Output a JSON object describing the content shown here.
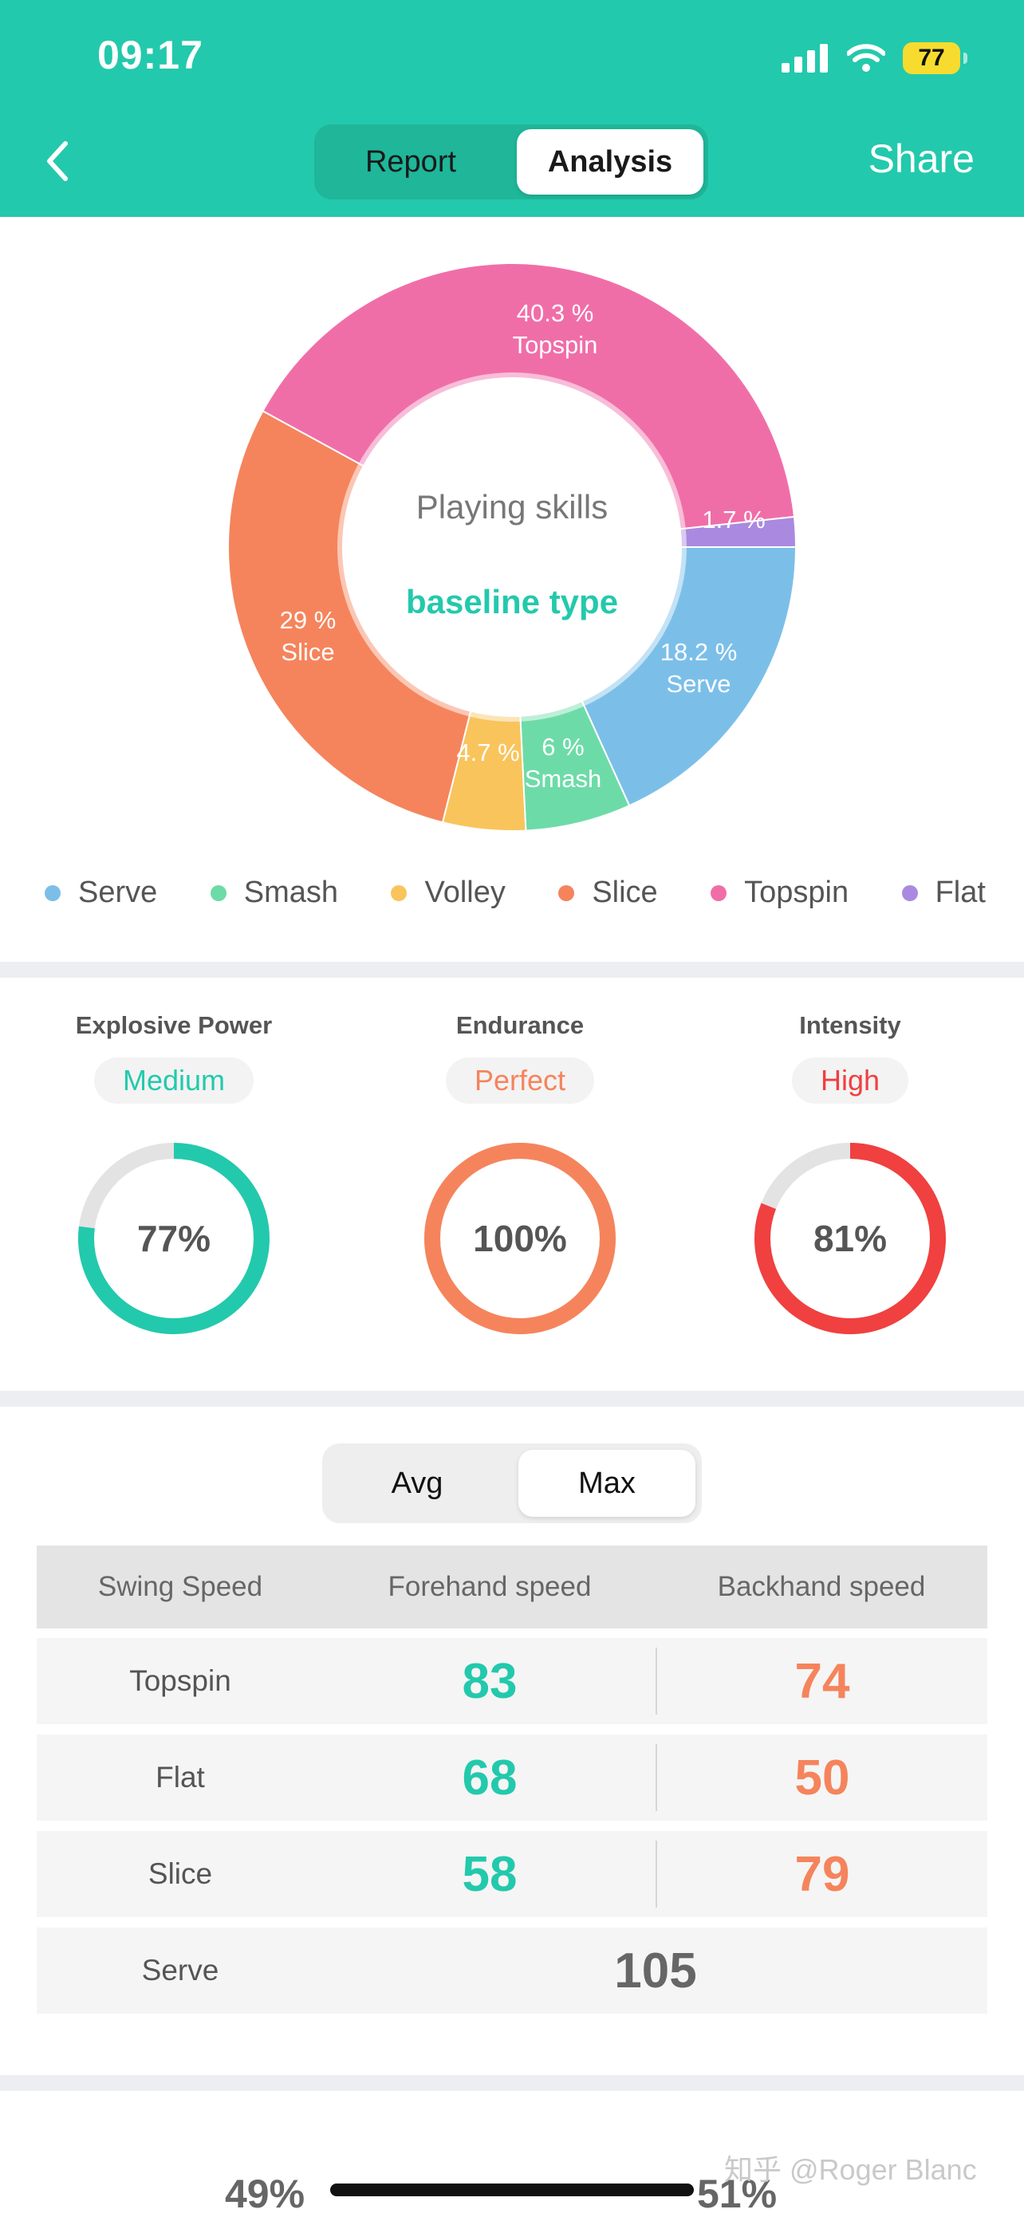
{
  "status_bar": {
    "time": "09:17",
    "battery": "77"
  },
  "nav": {
    "tabs": [
      "Report",
      "Analysis"
    ],
    "selected_tab": "Analysis",
    "share_label": "Share"
  },
  "skills_chart": {
    "center_title": "Playing skills",
    "center_type": "baseline type",
    "slice_labels": {
      "topspin": {
        "pct": "40.3 %",
        "name": "Topspin"
      },
      "flat": {
        "pct": "1.7 %"
      },
      "serve": {
        "pct": "18.2 %",
        "name": "Serve"
      },
      "smash": {
        "pct": "6 %",
        "name": "Smash"
      },
      "volley": {
        "pct": "4.7 %"
      },
      "slice": {
        "pct": "29 %",
        "name": "Slice"
      }
    }
  },
  "chart_data": {
    "type": "pie",
    "donut": true,
    "title": "Playing skills",
    "subtitle": "baseline type",
    "categories": [
      "Serve",
      "Smash",
      "Volley",
      "Slice",
      "Topspin",
      "Flat"
    ],
    "values": [
      18.2,
      6,
      4.7,
      29,
      40.3,
      1.7
    ],
    "colors": [
      "#7bbfe9",
      "#6ddba8",
      "#f9c45b",
      "#f5845c",
      "#f06ea8",
      "#a98ae0"
    ],
    "legend_position": "bottom"
  },
  "legend": [
    {
      "label": "Serve",
      "color": "#7bbfe9"
    },
    {
      "label": "Smash",
      "color": "#6ddba8"
    },
    {
      "label": "Volley",
      "color": "#f9c45b"
    },
    {
      "label": "Slice",
      "color": "#f5845c"
    },
    {
      "label": "Topspin",
      "color": "#f06ea8"
    },
    {
      "label": "Flat",
      "color": "#a98ae0"
    }
  ],
  "metrics": [
    {
      "title": "Explosive Power",
      "level": "Medium",
      "percent_text": "77%",
      "value": 0.77,
      "color": "#23c9ac"
    },
    {
      "title": "Endurance",
      "level": "Perfect",
      "percent_text": "100%",
      "value": 1.0,
      "color": "#f5845c"
    },
    {
      "title": "Intensity",
      "level": "High",
      "percent_text": "81%",
      "value": 0.81,
      "color": "#f04040"
    }
  ],
  "speed_toggle": {
    "options": [
      "Avg",
      "Max"
    ],
    "selected": "Max"
  },
  "speed_table": {
    "headers": [
      "Swing Speed",
      "Forehand speed",
      "Backhand speed"
    ],
    "rows": [
      {
        "label": "Topspin",
        "forehand": "83",
        "backhand": "74"
      },
      {
        "label": "Flat",
        "forehand": "68",
        "backhand": "50"
      },
      {
        "label": "Slice",
        "forehand": "58",
        "backhand": "79"
      }
    ],
    "serve": {
      "label": "Serve",
      "value": "105"
    }
  },
  "bottom": {
    "left_pct": "49%",
    "right_pct": "51%"
  },
  "watermark": "知乎 @Roger Blanc"
}
